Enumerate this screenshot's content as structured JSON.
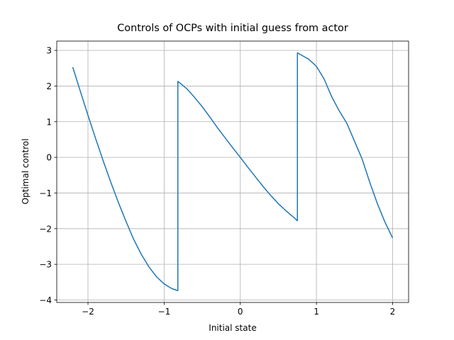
{
  "chart_data": {
    "type": "line",
    "title": "Controls of OCPs with initial guess from actor",
    "xlabel": "Initial state",
    "ylabel": "Optimal control",
    "x": [
      -2.2,
      -2.1,
      -2.0,
      -1.9,
      -1.8,
      -1.7,
      -1.6,
      -1.5,
      -1.4,
      -1.3,
      -1.2,
      -1.1,
      -1.0,
      -0.9,
      -0.82,
      -0.82,
      -0.7,
      -0.6,
      -0.5,
      -0.4,
      -0.3,
      -0.2,
      -0.1,
      0,
      0.1,
      0.2,
      0.3,
      0.4,
      0.5,
      0.6,
      0.7,
      0.75,
      0.75,
      0.9,
      1.0,
      1.1,
      1.2,
      1.3,
      1.4,
      1.5,
      1.6,
      1.7,
      1.8,
      1.9,
      2.0
    ],
    "series": [
      {
        "color": "#1f77b4",
        "values": [
          2.53,
          1.85,
          1.18,
          0.53,
          -0.1,
          -0.7,
          -1.27,
          -1.8,
          -2.3,
          -2.72,
          -3.07,
          -3.35,
          -3.55,
          -3.68,
          -3.74,
          2.13,
          1.92,
          1.68,
          1.42,
          1.13,
          0.83,
          0.55,
          0.27,
          0,
          -0.28,
          -0.55,
          -0.82,
          -1.07,
          -1.3,
          -1.5,
          -1.68,
          -1.78,
          2.93,
          2.75,
          2.55,
          2.2,
          1.7,
          1.3,
          0.95,
          0.45,
          -0.05,
          -0.7,
          -1.3,
          -1.82,
          -2.26
        ]
      }
    ],
    "xlim": [
      -2.41,
      2.21
    ],
    "ylim": [
      -4.07,
      3.26
    ],
    "xticks": [
      {
        "value": -2,
        "label": "−2"
      },
      {
        "value": -1,
        "label": "−1"
      },
      0,
      1,
      2
    ],
    "yticks": [
      {
        "value": -4,
        "label": "−4"
      },
      {
        "value": -3,
        "label": "−3"
      },
      {
        "value": -2,
        "label": "−2"
      },
      {
        "value": -1,
        "label": "−1"
      },
      0,
      1,
      2,
      3
    ],
    "grid": true
  }
}
